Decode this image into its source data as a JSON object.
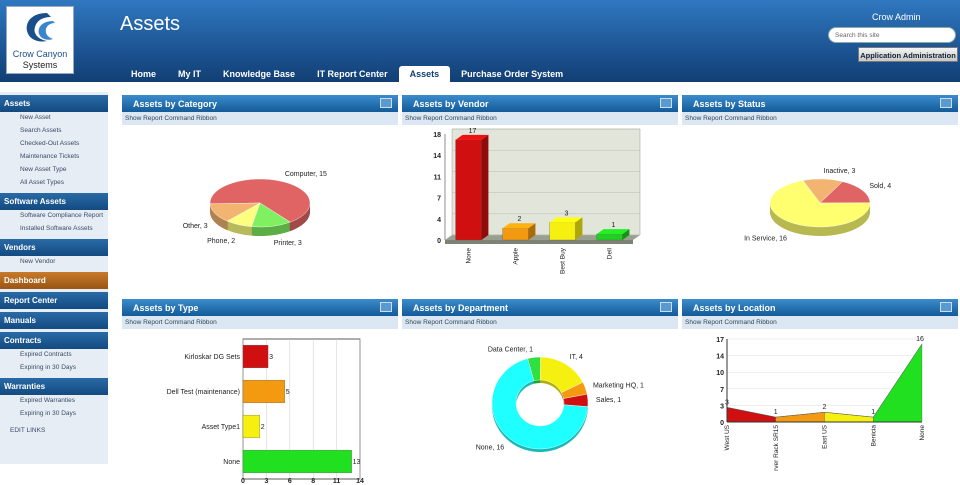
{
  "header": {
    "logo": {
      "line1": "Crow Canyon",
      "line2": "Systems"
    },
    "title": "Assets",
    "user": "Crow Admin",
    "search_placeholder": "Search this site",
    "admin_button": "Application Administration"
  },
  "nav": {
    "tabs": [
      "Home",
      "My IT",
      "Knowledge Base",
      "IT Report Center",
      "Assets",
      "Purchase Order System"
    ],
    "active": 4
  },
  "sidebar": {
    "sections": [
      {
        "title": "Assets",
        "items": [
          "New Asset",
          "Search Assets",
          "Checked-Out Assets",
          "Maintenance Tickets",
          "New Asset Type",
          "All Asset Types"
        ]
      },
      {
        "title": "Software Assets",
        "items": [
          "Software Compliance Report",
          "Installed Software Assets"
        ]
      },
      {
        "title": "Vendors",
        "items": [
          "New Vendor"
        ]
      },
      {
        "title": "Dashboard",
        "highlight": true
      },
      {
        "title": "Report Center"
      },
      {
        "title": "Manuals"
      },
      {
        "title": "Contracts",
        "items": [
          "Expired Contracts",
          "Expiring in 30 Days"
        ]
      },
      {
        "title": "Warranties",
        "items": [
          "Expired Warranties",
          "Expiring in 30 Days"
        ]
      }
    ],
    "edit_links": "EDIT LINKS"
  },
  "ribbon_label": "Show Report Command Ribbon",
  "chart_data": [
    {
      "type": "pie",
      "title": "Assets by Category",
      "values": [
        15,
        3,
        2,
        3
      ],
      "value_labels": [
        "Computer, 15",
        "Printer, 3",
        "Phone, 2",
        "Other, 3"
      ],
      "colors": [
        "#e06464",
        "#80f060",
        "#ffff80",
        "#f2b470"
      ]
    },
    {
      "type": "bar",
      "title": "Assets by Vendor",
      "categories": [
        "None",
        "Apple",
        "Best Buy",
        "Dell"
      ],
      "values": [
        17,
        2,
        3,
        1
      ],
      "colors": [
        "#d01010",
        "#f39a10",
        "#f6f010",
        "#20d020"
      ],
      "ylim": [
        0,
        18
      ],
      "yticks": [
        0,
        {
          "value": 3.6,
          "label": "4"
        },
        {
          "value": 7.2,
          "label": "7"
        },
        {
          "value": 10.8,
          "label": "11"
        },
        {
          "value": 14.4,
          "label": "14"
        },
        18
      ],
      "grid": true
    },
    {
      "type": "pie",
      "title": "Assets by Status",
      "values": [
        3,
        4,
        16
      ],
      "value_labels": [
        "Inactive, 3",
        "Sold, 4",
        "In Service, 16"
      ],
      "colors": [
        "#f2b470",
        "#e06464",
        "#ffff70"
      ]
    },
    {
      "type": "hbar",
      "title": "Assets by Type",
      "categories": [
        "Kirloskar DG Sets",
        "Dell Test (maintenance)",
        "Asset Type1",
        "None"
      ],
      "values": [
        3,
        5,
        2,
        13
      ],
      "colors": [
        "#d01010",
        "#f39a10",
        "#f6f010",
        "#20e020"
      ],
      "xlim": [
        0,
        14
      ],
      "xticks": [
        0,
        {
          "value": 2.8,
          "label": "3"
        },
        {
          "value": 5.6,
          "label": "6"
        },
        {
          "value": 8.4,
          "label": "8"
        },
        {
          "value": 11.2,
          "label": "11"
        },
        14
      ],
      "grid": true
    },
    {
      "type": "donut",
      "title": "Assets by Department",
      "values": [
        1,
        4,
        1,
        1,
        16
      ],
      "value_labels": [
        "Data Center, 1",
        "IT, 4",
        "Marketing HQ, 1",
        "Sales, 1",
        "None, 16"
      ],
      "colors": [
        "#30e040",
        "#f6f010",
        "#f39a10",
        "#d01010",
        "#20ffff"
      ]
    },
    {
      "type": "area",
      "title": "Assets by Location",
      "categories": [
        "West US",
        "rver Rack SR15",
        "East US",
        "Benicia",
        "None"
      ],
      "values": [
        3,
        1,
        2,
        1,
        16
      ],
      "colors": [
        "#d01010",
        "#f39a10",
        "#f6f010",
        "#20e020"
      ],
      "ylim": [
        0,
        17
      ],
      "yticks": [
        0,
        {
          "value": 3.4,
          "label": "3"
        },
        {
          "value": 6.8,
          "label": "7"
        },
        {
          "value": 10.2,
          "label": "10"
        },
        {
          "value": 13.6,
          "label": "14"
        },
        17
      ],
      "grid": true
    }
  ]
}
